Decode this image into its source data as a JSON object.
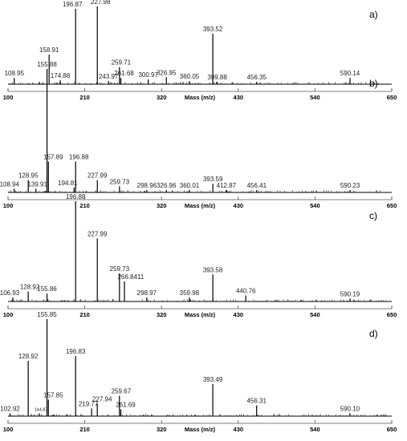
{
  "chart_data": [
    {
      "type": "bar",
      "panel_label": "a)",
      "xlabel": "Mass (m/z)",
      "xlim": [
        100,
        650
      ],
      "xticks": [
        100,
        210,
        320,
        430,
        540,
        650
      ],
      "ylim": [
        0,
        100
      ],
      "peaks": [
        {
          "mz": 108.95,
          "label": "108.95",
          "rel": 8
        },
        {
          "mz": 158.91,
          "label": "158.91",
          "rel": 38
        },
        {
          "mz": 174.88,
          "label": "174.88",
          "rel": 5
        },
        {
          "mz": 196.87,
          "label": "196.87",
          "rel": 97
        },
        {
          "mz": 227.98,
          "label": "227.98",
          "rel": 100
        },
        {
          "mz": 243.97,
          "label": "243.97",
          "rel": 4
        },
        {
          "mz": 259.71,
          "label": "259.71",
          "rel": 22
        },
        {
          "mz": 261.68,
          "label": "261.68",
          "rel": 8
        },
        {
          "mz": 300.97,
          "label": "300.97",
          "rel": 6
        },
        {
          "mz": 326.95,
          "label": "326.95",
          "rel": 9
        },
        {
          "mz": 360.05,
          "label": "360.05",
          "rel": 4
        },
        {
          "mz": 393.52,
          "label": "393.52",
          "rel": 65
        },
        {
          "mz": 399.88,
          "label": "399.88",
          "rel": 3
        },
        {
          "mz": 456.35,
          "label": "456.35",
          "rel": 3
        },
        {
          "mz": 590.14,
          "label": "590.14",
          "rel": 8
        }
      ]
    },
    {
      "type": "bar",
      "panel_label": "b)",
      "xlabel": "Mass (m/z)",
      "xlim": [
        100,
        650
      ],
      "xticks": [
        100,
        210,
        320,
        430,
        540,
        650
      ],
      "ylim": [
        0,
        100
      ],
      "peaks": [
        {
          "mz": 108.94,
          "label": "108.94",
          "rel": 3
        },
        {
          "mz": 128.95,
          "label": "128.95",
          "rel": 10
        },
        {
          "mz": 139.91,
          "label": "139.91",
          "rel": 3
        },
        {
          "mz": 155.88,
          "label": "155.88",
          "rel": 100
        },
        {
          "mz": 157.89,
          "label": "157.89",
          "rel": 25
        },
        {
          "mz": 194.81,
          "label": "194.81",
          "rel": 4
        },
        {
          "mz": 196.88,
          "label": "196.88",
          "rel": 25
        },
        {
          "mz": 227.99,
          "label": "227.99",
          "rel": 10
        },
        {
          "mz": 259.73,
          "label": "259.73",
          "rel": 5
        },
        {
          "mz": 298.96,
          "label": "298.96",
          "rel": 2
        },
        {
          "mz": 326.96,
          "label": "326.96",
          "rel": 2
        },
        {
          "mz": 360.01,
          "label": "360.01",
          "rel": 2
        },
        {
          "mz": 393.59,
          "label": "393.59",
          "rel": 7
        },
        {
          "mz": 412.87,
          "label": "412.87",
          "rel": 2
        },
        {
          "mz": 456.41,
          "label": "456.41",
          "rel": 2
        },
        {
          "mz": 590.23,
          "label": "590.23",
          "rel": 2
        }
      ]
    },
    {
      "type": "bar",
      "panel_label": "c)",
      "xlabel": "Mass (m/z)",
      "xlim": [
        100,
        650
      ],
      "xticks": [
        100,
        210,
        320,
        430,
        540,
        650
      ],
      "ylim": [
        0,
        100
      ],
      "peaks": [
        {
          "mz": 106.93,
          "label": "106.93",
          "rel": 4
        },
        {
          "mz": 128.92,
          "label": "128.92",
          "rel": 10
        },
        {
          "mz": 155.86,
          "label": "155.86",
          "rel": 8
        },
        {
          "mz": 196.88,
          "label": "196.88",
          "rel": 100
        },
        {
          "mz": 227.99,
          "label": "227.99",
          "rel": 63
        },
        {
          "mz": 259.73,
          "label": "259.73",
          "rel": 28
        },
        {
          "mz": 266.8411,
          "label": "266.8411",
          "rel": 20
        },
        {
          "mz": 298.97,
          "label": "298.97",
          "rel": 4
        },
        {
          "mz": 359.98,
          "label": "359.98",
          "rel": 4
        },
        {
          "mz": 393.58,
          "label": "393.58",
          "rel": 27
        },
        {
          "mz": 440.76,
          "label": "440.76",
          "rel": 6
        },
        {
          "mz": 590.19,
          "label": "590.19",
          "rel": 3
        }
      ]
    },
    {
      "type": "bar",
      "panel_label": "d)",
      "xlabel": "Mass (m/z)",
      "xlim": [
        100,
        650
      ],
      "xticks": [
        100,
        210,
        320,
        430,
        540,
        650
      ],
      "ylim": [
        0,
        100
      ],
      "peaks": [
        {
          "mz": 102.92,
          "label": "102.92",
          "rel": 3
        },
        {
          "mz": 128.92,
          "label": "128.92",
          "rel": 57
        },
        {
          "mz": 144.87,
          "label": "144.87",
          "rel": 3
        },
        {
          "mz": 155.85,
          "label": "155.85",
          "rel": 100
        },
        {
          "mz": 157.85,
          "label": "157.85",
          "rel": 17
        },
        {
          "mz": 196.83,
          "label": "196.83",
          "rel": 62
        },
        {
          "mz": 219.77,
          "label": "219.77",
          "rel": 8
        },
        {
          "mz": 227.94,
          "label": "227.94",
          "rel": 13
        },
        {
          "mz": 259.67,
          "label": "259.67",
          "rel": 21
        },
        {
          "mz": 261.69,
          "label": "261.69",
          "rel": 7
        },
        {
          "mz": 393.49,
          "label": "393.49",
          "rel": 33
        },
        {
          "mz": 456.31,
          "label": "456.31",
          "rel": 11
        },
        {
          "mz": 590.1,
          "label": "590.10",
          "rel": 3
        }
      ]
    }
  ]
}
